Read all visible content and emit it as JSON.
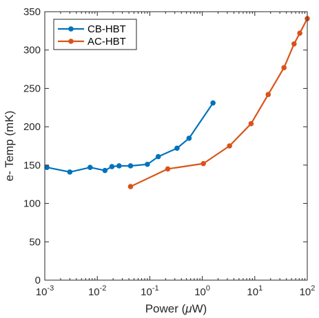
{
  "chart_data": {
    "type": "line",
    "xscale": "log",
    "xlim": [
      0.001,
      100
    ],
    "ylim": [
      0,
      350
    ],
    "xlabel": "Power (μW)",
    "ylabel": "e- Temp (mK)",
    "x_ticks": [
      {
        "value": 0.001,
        "base": "10",
        "exp": "-3"
      },
      {
        "value": 0.01,
        "base": "10",
        "exp": "-2"
      },
      {
        "value": 0.1,
        "base": "10",
        "exp": "-1"
      },
      {
        "value": 1,
        "base": "10",
        "exp": "0"
      },
      {
        "value": 10,
        "base": "10",
        "exp": "1"
      },
      {
        "value": 100,
        "base": "10",
        "exp": "2"
      }
    ],
    "y_ticks": [
      "0",
      "50",
      "100",
      "150",
      "200",
      "250",
      "300",
      "350"
    ],
    "grid": false,
    "legend_position": "top-left",
    "series": [
      {
        "name": "CB-HBT",
        "color": "#0072BD",
        "x": [
          0.0011,
          0.003,
          0.0073,
          0.014,
          0.019,
          0.026,
          0.043,
          0.09,
          0.145,
          0.33,
          0.56,
          1.6
        ],
        "y": [
          147,
          141,
          147,
          143,
          148,
          149,
          149,
          151,
          161,
          172,
          185,
          231
        ]
      },
      {
        "name": "AC-HBT",
        "color": "#D95319",
        "x": [
          0.043,
          0.22,
          1.05,
          3.3,
          8.5,
          18,
          36,
          56,
          72,
          100
        ],
        "y": [
          122,
          145,
          152,
          175,
          204,
          242,
          277,
          308,
          322,
          341
        ]
      }
    ]
  }
}
